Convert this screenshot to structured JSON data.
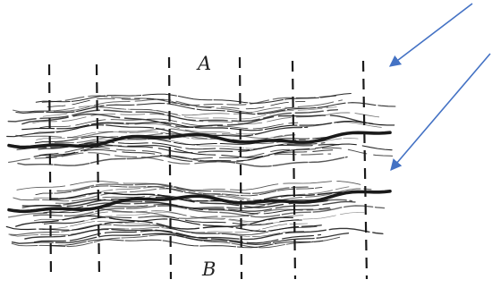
{
  "labels": {
    "top": "A",
    "bottom": "B"
  },
  "colors": {
    "ink": "#1a1a1a",
    "arrow": "#4472c4",
    "background": "#ffffff"
  },
  "marks": {
    "guide_lines": "dashed-vertical",
    "arrow_count": 2
  }
}
